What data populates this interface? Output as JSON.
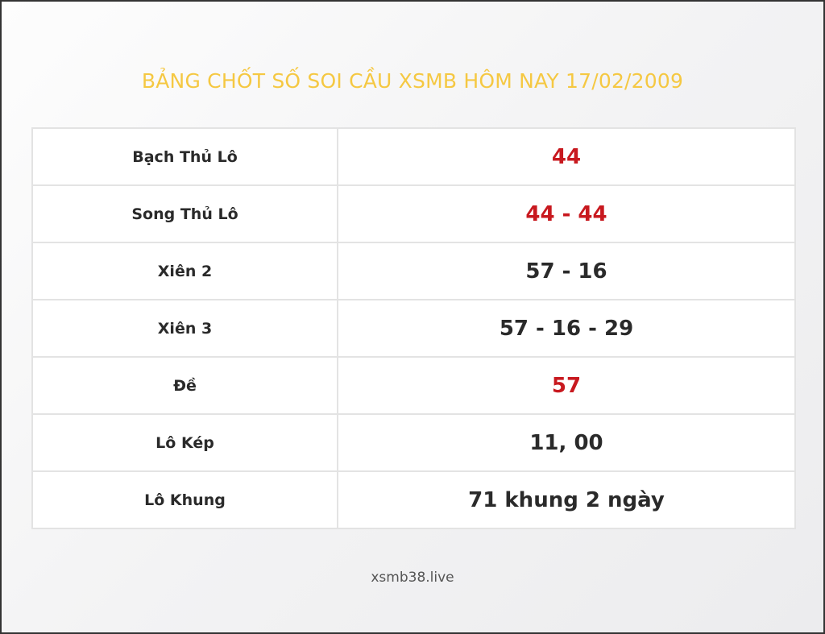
{
  "title": "BẢNG CHỐT SỐ SOI CẦU XSMB HÔM NAY 17/02/2009",
  "rows": [
    {
      "label": "Bạch Thủ Lô",
      "value": "44",
      "highlight": true
    },
    {
      "label": "Song Thủ Lô",
      "value": "44 - 44",
      "highlight": true
    },
    {
      "label": "Xiên 2",
      "value": "57 - 16",
      "highlight": false
    },
    {
      "label": "Xiên 3",
      "value": "57 - 16 - 29",
      "highlight": false
    },
    {
      "label": "Đề",
      "value": "57",
      "highlight": true
    },
    {
      "label": "Lô Kép",
      "value": "11, 00",
      "highlight": false
    },
    {
      "label": "Lô Khung",
      "value": "71 khung 2 ngày",
      "highlight": false
    }
  ],
  "footer": "xsmb38.live",
  "colors": {
    "title": "#f5c842",
    "highlight": "#c8191f",
    "text": "#2a2a2a"
  }
}
